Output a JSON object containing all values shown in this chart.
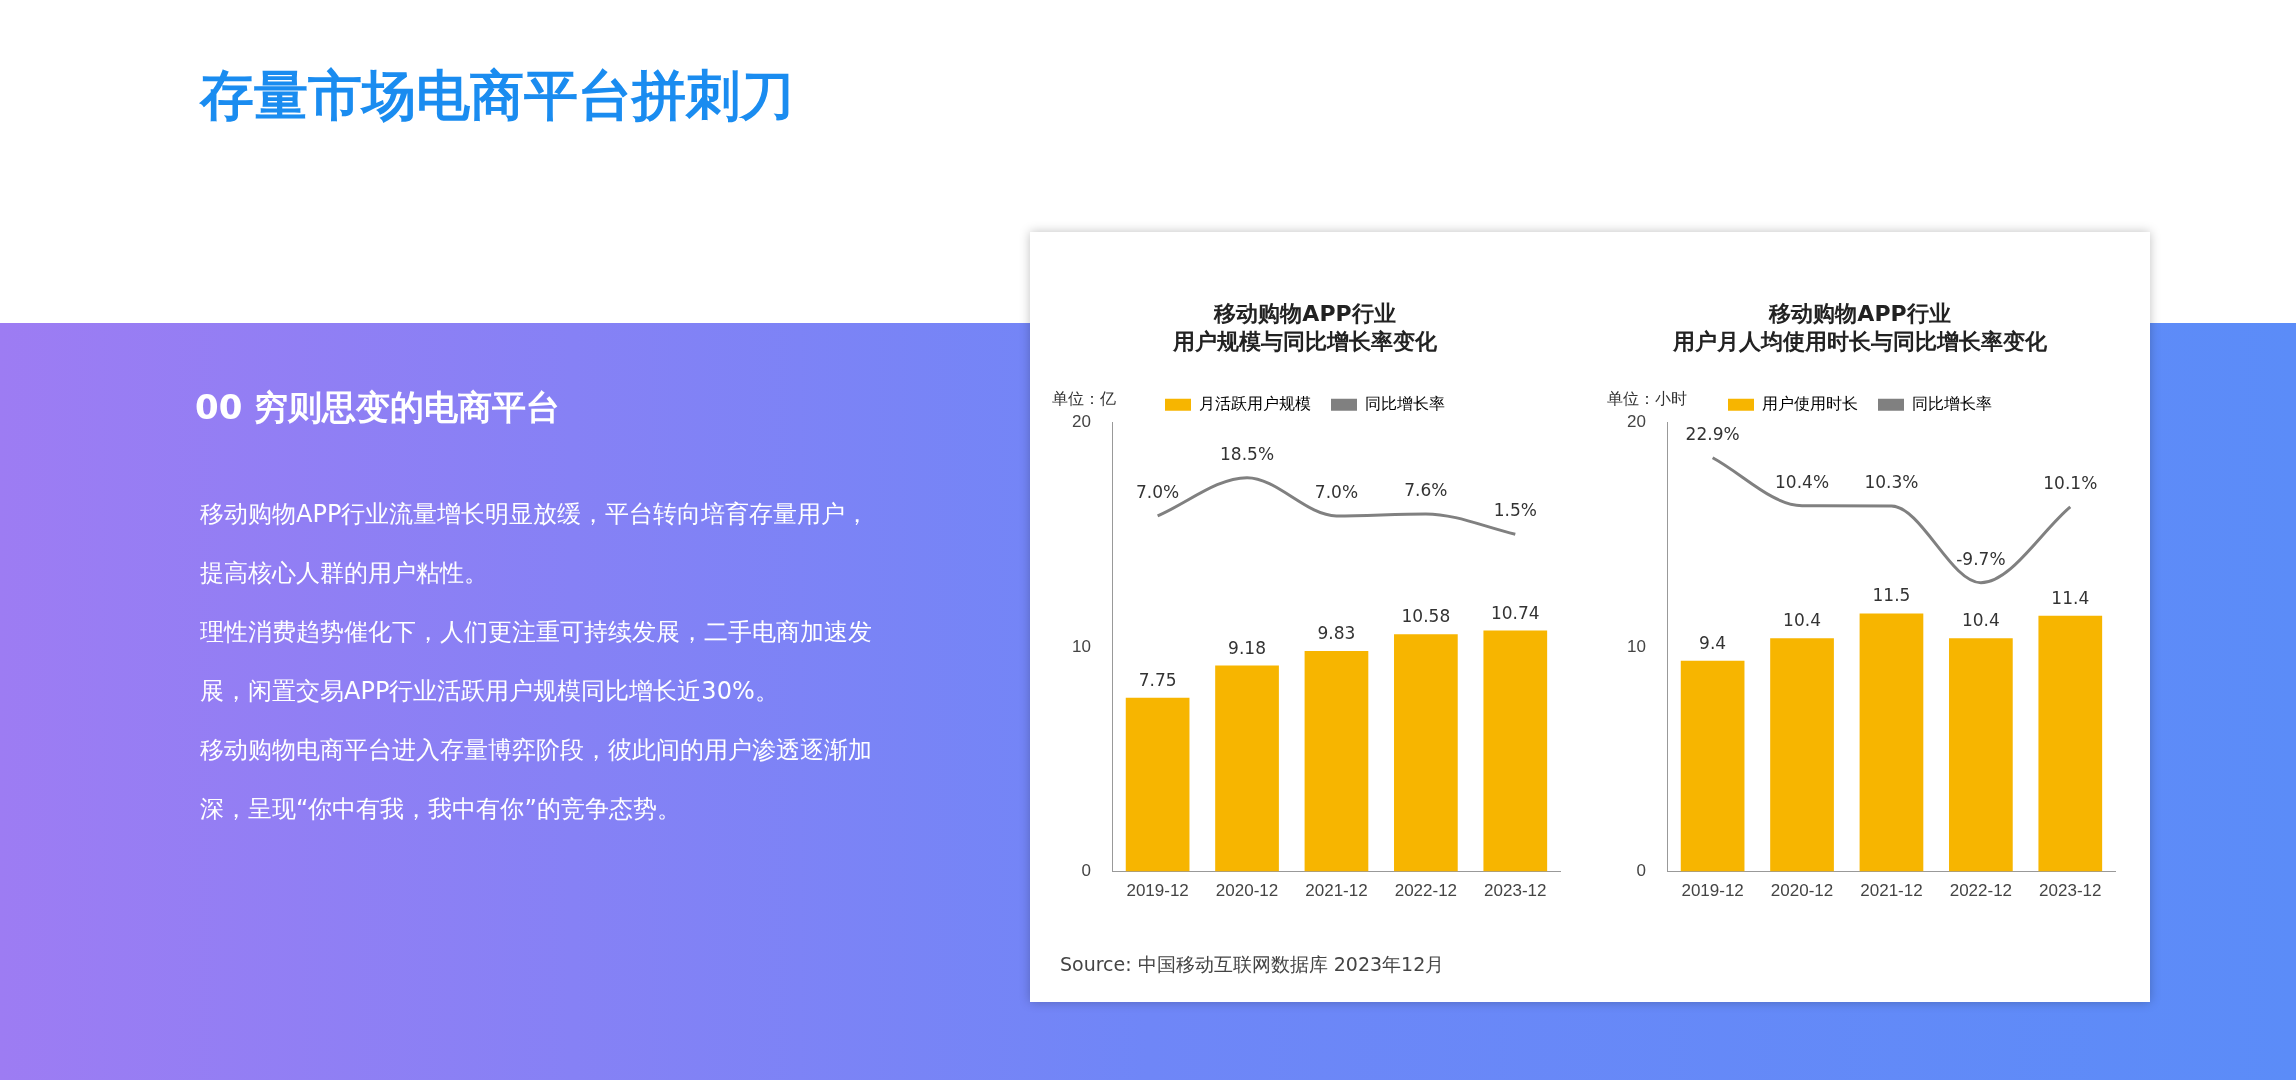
{
  "chart_data": [
    {
      "type": "other",
      "title": "存量市场电商平台拼刺刀",
      "subtitle": "00  穷则思变的电商平台",
      "annotations": [
        "移动购物APP行业流量增长明显放缓，平台转向培育存量用户，提高核心人群的用户粘性。",
        "理性消费趋势催化下，人们更注重可持续发展，二手电商加速发展，闲置交易APP行业活跃用户规模同比增长近30%。",
        "移动购物电商平台进入存量博弈阶段，彼此间的用户渗透逐渐加深，呈现“你中有我，我中有你”的竞争态势。"
      ]
    },
    {
      "type": "bar",
      "title": "移动购物APP行业",
      "subtitle": "用户规模与同比增长率变化",
      "ylabel": "单位：亿",
      "categories": [
        "2019-12",
        "2020-12",
        "2021-12",
        "2022-12",
        "2023-12"
      ],
      "series": [
        {
          "name": "月活跃用户规模",
          "type": "bar",
          "color": "#f7b500",
          "values": [
            7.75,
            9.18,
            9.83,
            10.58,
            10.74
          ],
          "value_labels": [
            "7.75",
            "9.18",
            "9.83",
            "10.58",
            "10.74"
          ]
        },
        {
          "name": "同比增长率",
          "type": "line",
          "axis": "y2",
          "color": "#808080",
          "values": [
            7.0,
            18.5,
            7.0,
            7.6,
            1.5
          ],
          "value_labels": [
            "7.0%",
            "18.5%",
            "7.0%",
            "7.6%",
            "1.5%"
          ]
        }
      ],
      "ylim": [
        0,
        20
      ],
      "yticks": [
        0,
        10,
        20
      ],
      "y2lim": [
        -100,
        35
      ],
      "legend": "top",
      "marker": "none",
      "line_style": "solid",
      "grid": false,
      "annotations": [
        "Source: 中国移动互联网数据库 2023年12月"
      ]
    },
    {
      "type": "bar",
      "title": "移动购物APP行业",
      "subtitle": "用户月人均使用时长与同比增长率变化",
      "ylabel": "单位：小时",
      "categories": [
        "2019-12",
        "2020-12",
        "2021-12",
        "2022-12",
        "2023-12"
      ],
      "series": [
        {
          "name": "用户使用时长",
          "type": "bar",
          "color": "#f7b500",
          "values": [
            9.4,
            10.4,
            11.5,
            10.4,
            11.4
          ],
          "value_labels": [
            "9.4",
            "10.4",
            "11.5",
            "10.4",
            "11.4"
          ]
        },
        {
          "name": "同比增长率",
          "type": "line",
          "axis": "y2",
          "color": "#808080",
          "values": [
            22.9,
            10.4,
            10.3,
            -9.7,
            10.1
          ],
          "value_labels": [
            "22.9%",
            "10.4%",
            "10.3%",
            "-9.7%",
            "10.1%"
          ]
        }
      ],
      "ylim": [
        0,
        20
      ],
      "yticks": [
        0,
        10,
        20
      ],
      "y2lim": [
        -85,
        32
      ],
      "legend": "top",
      "marker": "none",
      "line_style": "solid",
      "grid": false
    }
  ]
}
